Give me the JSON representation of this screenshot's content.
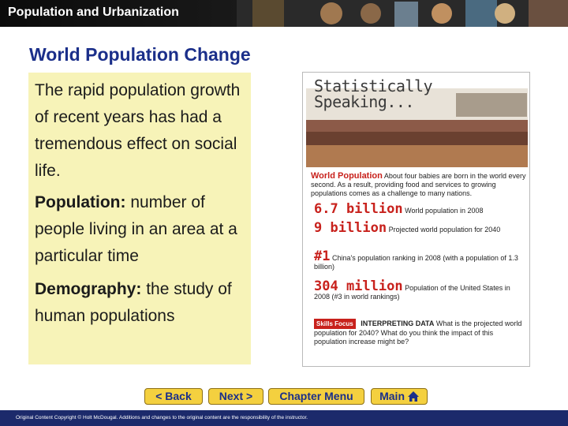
{
  "header": {
    "title": "Population and Urbanization"
  },
  "slide": {
    "title": "World Population Change",
    "paragraphs": [
      {
        "term": "",
        "text": "The rapid population growth of recent years has had a tremendous effect on social life."
      },
      {
        "term": "Population:",
        "text": "number of people living in an area at a particular time"
      },
      {
        "term": "Demography:",
        "text": "the study of human populations"
      }
    ]
  },
  "stat_box": {
    "header_line1": "Statistically",
    "header_line2": "Speaking...",
    "section_title": "World Population",
    "section_text": "About four babies are born in the world every second. As a result, providing food and services to growing populations comes as a challenge to many nations.",
    "stats": [
      {
        "big": "6.7 billion",
        "text": "World population in 2008"
      },
      {
        "big": "9 billion",
        "text": "Projected world population for 2040"
      },
      {
        "big": "#1",
        "text": "China's population ranking in 2008 (with a population of 1.3 billion)"
      },
      {
        "big": "304 million",
        "text": "Population of the United States in 2008 (#3 in world rankings)"
      }
    ],
    "skills_label": "Skills Focus",
    "skills_heading": "INTERPRETING DATA",
    "skills_text": "What is the projected world population for 2040? What do you think the impact of this population increase might be?"
  },
  "nav": {
    "back": "< Back",
    "next": "Next >",
    "chapter_menu": "Chapter Menu",
    "main": "Main"
  },
  "footer": {
    "text": "Original Content Copyright © Holt McDougal. Additions and changes to the original content are the responsibility of the instructor."
  },
  "colors": {
    "title_blue": "#1b2f8a",
    "panel_yellow": "#f7f3b8",
    "button_gold": "#f4d03f",
    "accent_red": "#c8211c",
    "footer_navy": "#1c2a6b"
  },
  "icons": {
    "main_button_icon": "home-icon",
    "banner_art": "collage-image",
    "stat_photo": "crowd-photo"
  }
}
